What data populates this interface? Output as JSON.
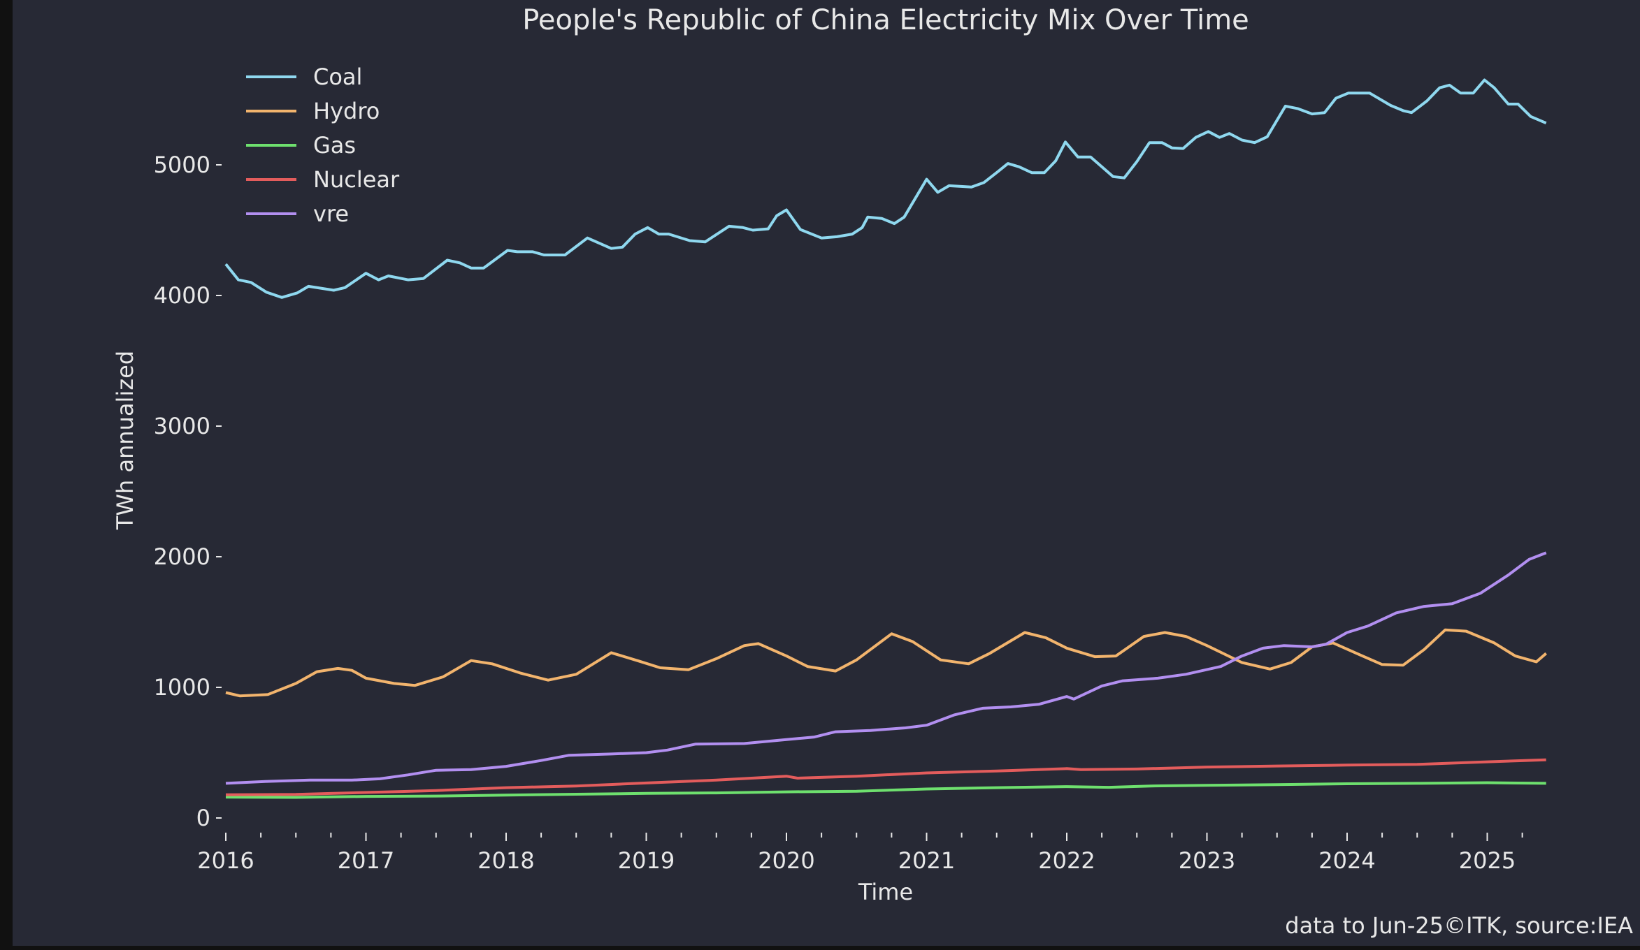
{
  "chart_data": {
    "type": "line",
    "title": "People's Republic of China Electricity Mix Over Time",
    "xlabel": "Time",
    "ylabel": "TWh annualized",
    "xlim": [
      2016.0,
      2025.45
    ],
    "ylim": [
      0,
      5800
    ],
    "x_ticks": [
      "2016",
      "2017",
      "2018",
      "2019",
      "2020",
      "2021",
      "2022",
      "2023",
      "2024",
      "2025"
    ],
    "x_minor_ticks": "quarterly",
    "y_ticks": [
      0,
      1000,
      2000,
      3000,
      4000,
      5000
    ],
    "grid": false,
    "legend": "top-left",
    "footnote": "data to Jun-25©ITK, source:IEA",
    "series": [
      {
        "name": "Coal",
        "color": "#8fd8ef",
        "points": [
          [
            2016.0,
            4240
          ],
          [
            2016.09,
            4120
          ],
          [
            2016.18,
            4100
          ],
          [
            2016.29,
            4025
          ],
          [
            2016.4,
            3985
          ],
          [
            2016.51,
            4020
          ],
          [
            2016.59,
            4070
          ],
          [
            2016.77,
            4040
          ],
          [
            2016.85,
            4060
          ],
          [
            2017.0,
            4170
          ],
          [
            2017.09,
            4120
          ],
          [
            2017.16,
            4150
          ],
          [
            2017.3,
            4120
          ],
          [
            2017.41,
            4130
          ],
          [
            2017.58,
            4270
          ],
          [
            2017.67,
            4250
          ],
          [
            2017.75,
            4210
          ],
          [
            2017.84,
            4210
          ],
          [
            2018.01,
            4345
          ],
          [
            2018.08,
            4335
          ],
          [
            2018.19,
            4335
          ],
          [
            2018.27,
            4310
          ],
          [
            2018.42,
            4310
          ],
          [
            2018.58,
            4440
          ],
          [
            2018.75,
            4360
          ],
          [
            2018.83,
            4370
          ],
          [
            2018.92,
            4470
          ],
          [
            2019.01,
            4520
          ],
          [
            2019.09,
            4470
          ],
          [
            2019.16,
            4470
          ],
          [
            2019.31,
            4420
          ],
          [
            2019.42,
            4410
          ],
          [
            2019.59,
            4530
          ],
          [
            2019.69,
            4520
          ],
          [
            2019.76,
            4500
          ],
          [
            2019.87,
            4510
          ],
          [
            2019.93,
            4610
          ],
          [
            2020.0,
            4655
          ],
          [
            2020.1,
            4505
          ],
          [
            2020.25,
            4440
          ],
          [
            2020.36,
            4450
          ],
          [
            2020.47,
            4470
          ],
          [
            2020.54,
            4520
          ],
          [
            2020.58,
            4600
          ],
          [
            2020.68,
            4590
          ],
          [
            2020.77,
            4550
          ],
          [
            2020.84,
            4600
          ],
          [
            2021.0,
            4890
          ],
          [
            2021.08,
            4790
          ],
          [
            2021.16,
            4840
          ],
          [
            2021.32,
            4830
          ],
          [
            2021.41,
            4865
          ],
          [
            2021.51,
            4950
          ],
          [
            2021.58,
            5010
          ],
          [
            2021.66,
            4985
          ],
          [
            2021.75,
            4940
          ],
          [
            2021.84,
            4940
          ],
          [
            2021.92,
            5030
          ],
          [
            2021.99,
            5175
          ],
          [
            2022.08,
            5060
          ],
          [
            2022.17,
            5060
          ],
          [
            2022.33,
            4910
          ],
          [
            2022.41,
            4900
          ],
          [
            2022.5,
            5025
          ],
          [
            2022.59,
            5170
          ],
          [
            2022.68,
            5170
          ],
          [
            2022.75,
            5130
          ],
          [
            2022.83,
            5125
          ],
          [
            2022.92,
            5210
          ],
          [
            2023.01,
            5255
          ],
          [
            2023.09,
            5210
          ],
          [
            2023.16,
            5240
          ],
          [
            2023.25,
            5190
          ],
          [
            2023.34,
            5170
          ],
          [
            2023.43,
            5215
          ],
          [
            2023.56,
            5450
          ],
          [
            2023.65,
            5430
          ],
          [
            2023.75,
            5390
          ],
          [
            2023.84,
            5400
          ],
          [
            2023.92,
            5510
          ],
          [
            2024.01,
            5550
          ],
          [
            2024.16,
            5550
          ],
          [
            2024.31,
            5455
          ],
          [
            2024.4,
            5415
          ],
          [
            2024.46,
            5400
          ],
          [
            2024.57,
            5490
          ],
          [
            2024.66,
            5590
          ],
          [
            2024.73,
            5610
          ],
          [
            2024.81,
            5550
          ],
          [
            2024.9,
            5550
          ],
          [
            2024.98,
            5650
          ],
          [
            2025.05,
            5590
          ],
          [
            2025.15,
            5465
          ],
          [
            2025.22,
            5465
          ],
          [
            2025.31,
            5370
          ],
          [
            2025.42,
            5320
          ]
        ]
      },
      {
        "name": "Hydro",
        "color": "#f2b46d",
        "points": [
          [
            2016.0,
            960
          ],
          [
            2016.1,
            935
          ],
          [
            2016.3,
            945
          ],
          [
            2016.5,
            1030
          ],
          [
            2016.65,
            1120
          ],
          [
            2016.8,
            1145
          ],
          [
            2016.9,
            1130
          ],
          [
            2017.0,
            1070
          ],
          [
            2017.2,
            1030
          ],
          [
            2017.35,
            1015
          ],
          [
            2017.55,
            1080
          ],
          [
            2017.75,
            1205
          ],
          [
            2017.9,
            1180
          ],
          [
            2018.1,
            1110
          ],
          [
            2018.3,
            1055
          ],
          [
            2018.5,
            1100
          ],
          [
            2018.75,
            1265
          ],
          [
            2018.95,
            1200
          ],
          [
            2019.1,
            1150
          ],
          [
            2019.3,
            1135
          ],
          [
            2019.5,
            1220
          ],
          [
            2019.7,
            1320
          ],
          [
            2019.8,
            1335
          ],
          [
            2020.0,
            1240
          ],
          [
            2020.15,
            1160
          ],
          [
            2020.35,
            1125
          ],
          [
            2020.5,
            1210
          ],
          [
            2020.75,
            1410
          ],
          [
            2020.9,
            1350
          ],
          [
            2021.1,
            1210
          ],
          [
            2021.3,
            1180
          ],
          [
            2021.45,
            1260
          ],
          [
            2021.7,
            1420
          ],
          [
            2021.85,
            1380
          ],
          [
            2022.0,
            1300
          ],
          [
            2022.2,
            1235
          ],
          [
            2022.35,
            1240
          ],
          [
            2022.55,
            1390
          ],
          [
            2022.7,
            1420
          ],
          [
            2022.85,
            1390
          ],
          [
            2023.0,
            1320
          ],
          [
            2023.25,
            1190
          ],
          [
            2023.45,
            1140
          ],
          [
            2023.6,
            1190
          ],
          [
            2023.75,
            1310
          ],
          [
            2023.9,
            1340
          ],
          [
            2024.1,
            1245
          ],
          [
            2024.25,
            1175
          ],
          [
            2024.4,
            1170
          ],
          [
            2024.55,
            1290
          ],
          [
            2024.7,
            1440
          ],
          [
            2024.85,
            1430
          ],
          [
            2025.05,
            1340
          ],
          [
            2025.2,
            1240
          ],
          [
            2025.35,
            1195
          ],
          [
            2025.42,
            1260
          ]
        ]
      },
      {
        "name": "Gas",
        "color": "#6ee06e",
        "points": [
          [
            2016.0,
            160
          ],
          [
            2016.5,
            158
          ],
          [
            2017.0,
            165
          ],
          [
            2017.5,
            168
          ],
          [
            2018.0,
            175
          ],
          [
            2018.5,
            182
          ],
          [
            2019.0,
            188
          ],
          [
            2019.5,
            192
          ],
          [
            2020.0,
            200
          ],
          [
            2020.5,
            205
          ],
          [
            2021.0,
            222
          ],
          [
            2021.5,
            232
          ],
          [
            2022.0,
            240
          ],
          [
            2022.3,
            235
          ],
          [
            2022.6,
            245
          ],
          [
            2023.0,
            250
          ],
          [
            2023.5,
            255
          ],
          [
            2024.0,
            262
          ],
          [
            2024.5,
            265
          ],
          [
            2025.0,
            270
          ],
          [
            2025.42,
            265
          ]
        ]
      },
      {
        "name": "Nuclear",
        "color": "#e35c5c",
        "points": [
          [
            2016.0,
            178
          ],
          [
            2016.5,
            180
          ],
          [
            2017.0,
            195
          ],
          [
            2017.5,
            210
          ],
          [
            2018.0,
            232
          ],
          [
            2018.5,
            245
          ],
          [
            2019.0,
            268
          ],
          [
            2019.5,
            290
          ],
          [
            2020.0,
            320
          ],
          [
            2020.08,
            305
          ],
          [
            2020.5,
            320
          ],
          [
            2021.0,
            345
          ],
          [
            2021.5,
            360
          ],
          [
            2022.0,
            378
          ],
          [
            2022.1,
            370
          ],
          [
            2022.5,
            375
          ],
          [
            2023.0,
            390
          ],
          [
            2023.5,
            398
          ],
          [
            2024.0,
            405
          ],
          [
            2024.5,
            410
          ],
          [
            2025.0,
            430
          ],
          [
            2025.42,
            445
          ]
        ]
      },
      {
        "name": "vre",
        "color": "#b28ff0",
        "points": [
          [
            2016.0,
            265
          ],
          [
            2016.3,
            280
          ],
          [
            2016.6,
            290
          ],
          [
            2016.9,
            290
          ],
          [
            2017.1,
            300
          ],
          [
            2017.3,
            330
          ],
          [
            2017.5,
            365
          ],
          [
            2017.75,
            370
          ],
          [
            2018.0,
            395
          ],
          [
            2018.25,
            440
          ],
          [
            2018.45,
            480
          ],
          [
            2018.75,
            490
          ],
          [
            2019.0,
            500
          ],
          [
            2019.15,
            520
          ],
          [
            2019.35,
            565
          ],
          [
            2019.7,
            570
          ],
          [
            2020.0,
            600
          ],
          [
            2020.2,
            620
          ],
          [
            2020.35,
            660
          ],
          [
            2020.6,
            670
          ],
          [
            2020.85,
            690
          ],
          [
            2021.0,
            710
          ],
          [
            2021.2,
            790
          ],
          [
            2021.4,
            840
          ],
          [
            2021.6,
            850
          ],
          [
            2021.8,
            870
          ],
          [
            2022.0,
            930
          ],
          [
            2022.05,
            910
          ],
          [
            2022.25,
            1010
          ],
          [
            2022.4,
            1050
          ],
          [
            2022.65,
            1070
          ],
          [
            2022.85,
            1100
          ],
          [
            2023.1,
            1160
          ],
          [
            2023.25,
            1240
          ],
          [
            2023.4,
            1300
          ],
          [
            2023.55,
            1320
          ],
          [
            2023.75,
            1310
          ],
          [
            2023.85,
            1330
          ],
          [
            2024.0,
            1420
          ],
          [
            2024.15,
            1470
          ],
          [
            2024.35,
            1570
          ],
          [
            2024.55,
            1620
          ],
          [
            2024.75,
            1640
          ],
          [
            2024.95,
            1720
          ],
          [
            2025.15,
            1860
          ],
          [
            2025.3,
            1980
          ],
          [
            2025.42,
            2030
          ]
        ]
      }
    ]
  }
}
